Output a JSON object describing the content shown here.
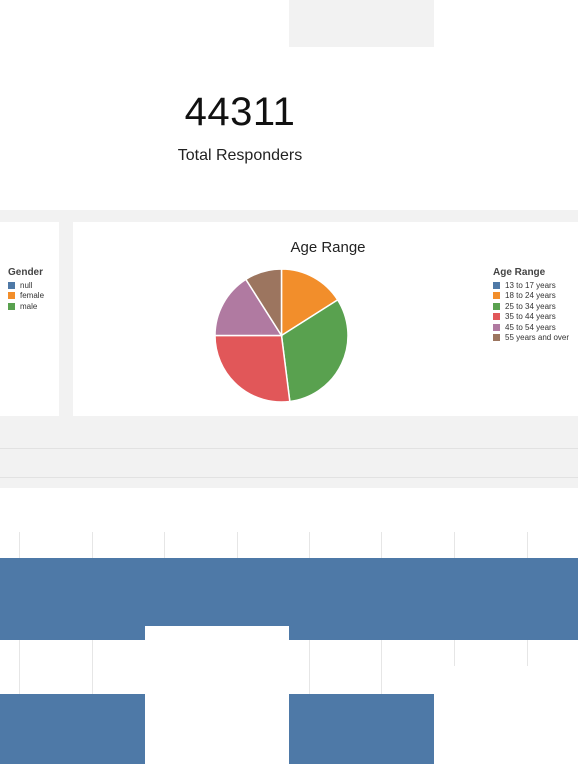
{
  "kpi": {
    "value": "44311",
    "label": "Total Responders"
  },
  "gender_legend": {
    "title": "Gender",
    "items": [
      {
        "label": "null",
        "color": "#4e79a7"
      },
      {
        "label": "female",
        "color": "#f28e2b"
      },
      {
        "label": "male",
        "color": "#59a14f"
      }
    ]
  },
  "chart_data": [
    {
      "type": "pie",
      "title": "Age Range",
      "legend_title": "Age Range",
      "legend_position": "right",
      "categories": [
        "13 to 17 years",
        "18 to 24 years",
        "25 to 34 years",
        "35 to 44 years",
        "45 to 54 years",
        "55 years and over"
      ],
      "values": [
        0,
        16,
        32,
        27,
        16,
        9
      ],
      "colors": [
        "#4e79a7",
        "#f28e2b",
        "#59a14f",
        "#e15759",
        "#b07aa1",
        "#9c755f"
      ]
    }
  ],
  "bar_color": "#4e79a7"
}
